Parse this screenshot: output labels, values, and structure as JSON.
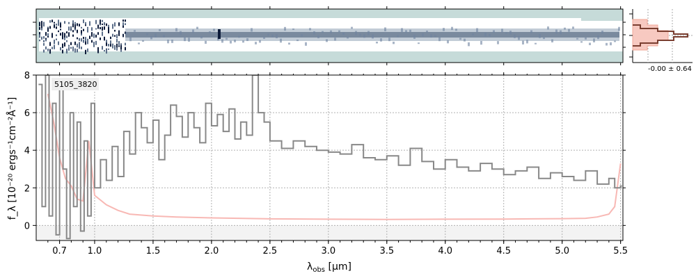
{
  "chart_data": {
    "type": "line",
    "object_id": "5105_3820",
    "xlabel_main": "λ",
    "xlabel_sub": "obs",
    "xlabel_unit": " [μm]",
    "ylabel": "f_λ [10⁻²⁰ ergs⁻¹cm⁻²Å⁻¹]",
    "xlim": [
      0.5,
      5.52
    ],
    "ylim": [
      -0.8,
      8
    ],
    "x_ticks": [
      0.7,
      1.0,
      1.5,
      2.0,
      2.5,
      3.0,
      3.5,
      4.0,
      4.5,
      5.0,
      5.5
    ],
    "x_tick_labels": [
      "0.7",
      "1.0",
      "1.5",
      "2.0",
      "2.5",
      "3.0",
      "3.5",
      "4.0",
      "4.5",
      "5.0",
      "5.5"
    ],
    "y_ticks": [
      0,
      2,
      4,
      6,
      8
    ],
    "y_tick_labels": [
      "0",
      "2",
      "4",
      "6",
      "8"
    ],
    "grid": true,
    "series": [
      {
        "role": "flux",
        "color": "#888888",
        "x": [
          0.52,
          0.55,
          0.58,
          0.61,
          0.64,
          0.67,
          0.7,
          0.73,
          0.76,
          0.79,
          0.82,
          0.85,
          0.88,
          0.91,
          0.94,
          0.97,
          1.0,
          1.05,
          1.1,
          1.15,
          1.2,
          1.25,
          1.3,
          1.35,
          1.4,
          1.45,
          1.5,
          1.55,
          1.6,
          1.65,
          1.7,
          1.75,
          1.8,
          1.85,
          1.9,
          1.95,
          2.0,
          2.05,
          2.1,
          2.15,
          2.2,
          2.25,
          2.3,
          2.35,
          2.4,
          2.45,
          2.5,
          2.6,
          2.7,
          2.8,
          2.9,
          3.0,
          3.1,
          3.2,
          3.3,
          3.4,
          3.5,
          3.6,
          3.7,
          3.8,
          3.9,
          4.0,
          4.1,
          4.2,
          4.3,
          4.4,
          4.5,
          4.6,
          4.7,
          4.8,
          4.9,
          5.0,
          5.1,
          5.2,
          5.3,
          5.4,
          5.45,
          5.5
        ],
        "y": [
          7.5,
          1.0,
          8.0,
          0.5,
          6.5,
          -0.5,
          7.8,
          3.0,
          -0.7,
          6.0,
          1.0,
          5.5,
          -0.3,
          4.5,
          0.5,
          6.5,
          2.0,
          3.5,
          2.4,
          4.2,
          2.6,
          5.0,
          3.8,
          6.0,
          5.2,
          4.4,
          5.6,
          3.5,
          4.8,
          6.4,
          5.8,
          4.7,
          6.0,
          5.2,
          4.4,
          6.5,
          5.3,
          5.9,
          5.0,
          6.2,
          4.6,
          5.5,
          4.8,
          8.0,
          6.0,
          5.5,
          4.5,
          4.1,
          4.5,
          4.2,
          4.0,
          3.9,
          3.8,
          4.3,
          3.6,
          3.5,
          3.7,
          3.2,
          4.1,
          3.4,
          3.0,
          3.5,
          3.1,
          2.9,
          3.3,
          3.0,
          2.7,
          2.9,
          3.1,
          2.5,
          2.8,
          2.6,
          2.4,
          2.9,
          2.2,
          2.5,
          2.0,
          2.1
        ]
      },
      {
        "role": "uncertainty",
        "color": "#f8b8b4",
        "x": [
          0.6,
          0.65,
          0.7,
          0.75,
          0.8,
          0.85,
          0.9,
          0.95,
          1.0,
          1.1,
          1.2,
          1.3,
          1.5,
          1.7,
          2.0,
          2.5,
          3.0,
          3.5,
          4.0,
          4.5,
          5.0,
          5.2,
          5.3,
          5.4,
          5.45,
          5.5
        ],
        "y": [
          7.0,
          5.5,
          3.6,
          2.5,
          2.1,
          1.4,
          1.3,
          4.5,
          1.6,
          1.1,
          0.8,
          0.6,
          0.5,
          0.45,
          0.4,
          0.35,
          0.33,
          0.32,
          0.33,
          0.34,
          0.36,
          0.38,
          0.45,
          0.6,
          1.0,
          3.3
        ]
      }
    ],
    "histogram_panel": {
      "annotation": "-0.00 ± 0.64"
    }
  }
}
